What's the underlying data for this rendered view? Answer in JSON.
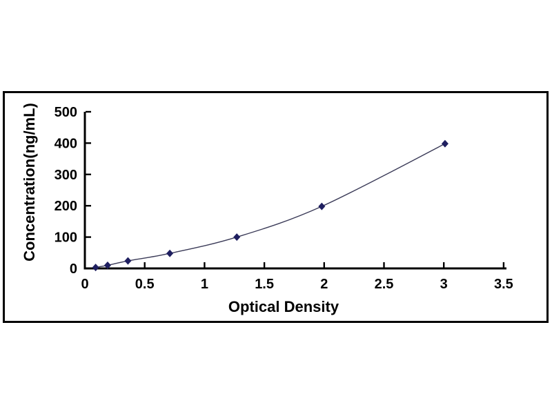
{
  "figure": {
    "background_color": "#ffffff",
    "frame_border_color": "#000000",
    "plot_background_color": "#ffffff"
  },
  "chart_data": {
    "type": "line",
    "subtype": "smooth-line-with-markers",
    "title": "",
    "xlabel": "Optical Density",
    "ylabel": "Concentration(ng/mL)",
    "x_ticks": [
      0,
      0.5,
      1,
      1.5,
      2,
      2.5,
      3,
      3.5
    ],
    "x_tick_labels": [
      "0",
      "0.5",
      "1",
      "1.5",
      "2",
      "2.5",
      "3",
      "3.5"
    ],
    "y_ticks": [
      0,
      100,
      200,
      300,
      400,
      500
    ],
    "y_tick_labels": [
      "0",
      "100",
      "200",
      "300",
      "400",
      "500"
    ],
    "xlim": [
      0,
      3.52
    ],
    "ylim": [
      0,
      500
    ],
    "grid": false,
    "legend_position": "none",
    "axis_color": "#000000",
    "text_color": "#000000",
    "tick_direction": "inside",
    "series": [
      {
        "name": "standard-curve",
        "marker": "diamond",
        "marker_color": "#1f1f60",
        "line_color": "#3b3b58",
        "points": [
          {
            "x": 0.09,
            "y": 3
          },
          {
            "x": 0.19,
            "y": 10
          },
          {
            "x": 0.36,
            "y": 24
          },
          {
            "x": 0.71,
            "y": 48
          },
          {
            "x": 1.27,
            "y": 100
          },
          {
            "x": 1.98,
            "y": 198
          },
          {
            "x": 3.01,
            "y": 398
          }
        ]
      }
    ]
  }
}
